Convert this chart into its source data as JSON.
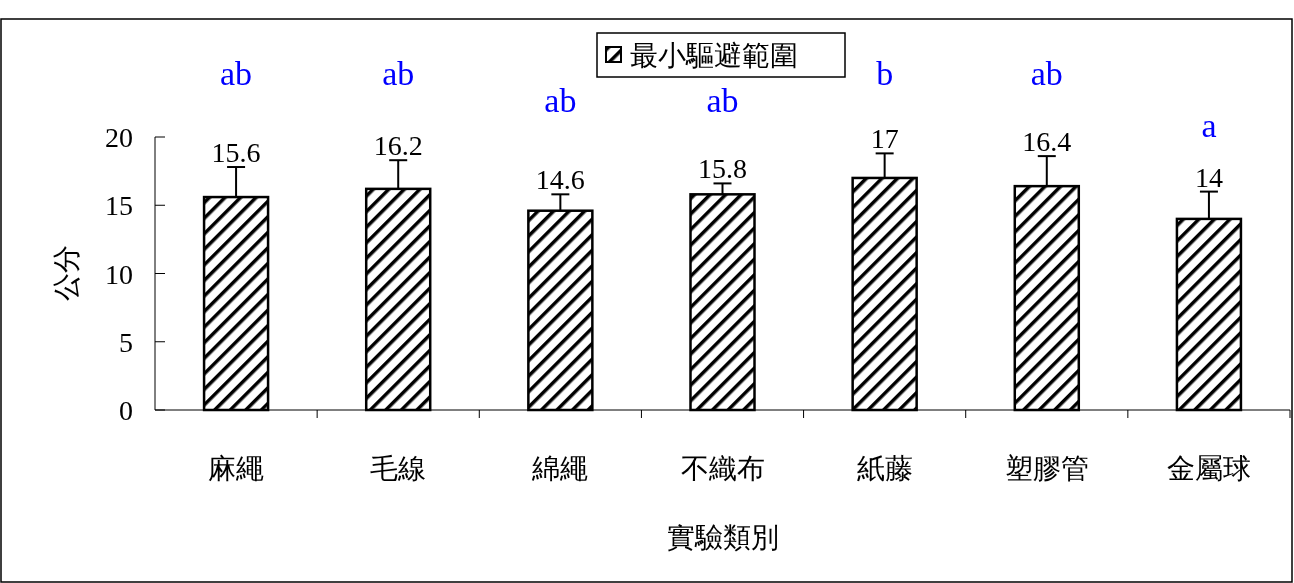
{
  "chart_data": {
    "type": "bar",
    "xlabel": "實驗類別",
    "ylabel": "公分",
    "categories": [
      "麻繩",
      "毛線",
      "綿繩",
      "不織布",
      "紙藤",
      "塑膠管",
      "金屬球"
    ],
    "series": [
      {
        "name": "最小驅避範圍",
        "color": "#000000",
        "values": [
          15.6,
          16.2,
          14.6,
          15.8,
          17,
          16.4,
          14
        ],
        "errors": [
          [
            15.6,
            17.8
          ],
          [
            16.2,
            18.3
          ],
          [
            14.6,
            15.8
          ],
          [
            15.8,
            16.6
          ],
          [
            17,
            18.8
          ],
          [
            16.4,
            18.6
          ],
          [
            14,
            16.0
          ]
        ]
      }
    ],
    "ylim": [
      0,
      20
    ],
    "yticks": [
      0,
      5,
      10,
      15,
      20
    ],
    "data_labels": true,
    "legend": "top",
    "grid": false,
    "annotations": [
      "ab",
      "ab",
      "ab",
      "ab",
      "b",
      "ab",
      "a"
    ]
  }
}
